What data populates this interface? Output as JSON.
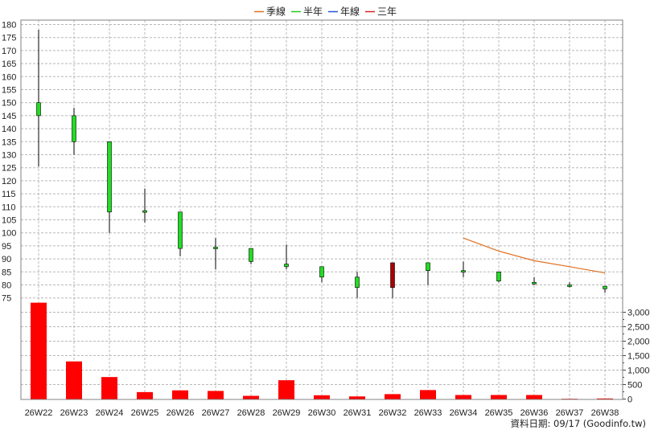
{
  "chart_data": {
    "type": "candlestick",
    "legend": [
      {
        "name": "季線",
        "color": "#e07020"
      },
      {
        "name": "半年",
        "color": "#22cc22"
      },
      {
        "name": "年線",
        "color": "#2255dd"
      },
      {
        "name": "三年",
        "color": "#dd2222"
      }
    ],
    "categories": [
      "26W22",
      "26W23",
      "26W24",
      "26W25",
      "26W26",
      "26W27",
      "26W28",
      "26W29",
      "26W30",
      "26W31",
      "26W32",
      "26W33",
      "26W34",
      "26W35",
      "26W36",
      "26W37",
      "26W38"
    ],
    "price_axis": {
      "min": 75,
      "max": 180,
      "step": 5
    },
    "volume_axis": {
      "min": 0,
      "max": 3000,
      "step": 500,
      "labels": [
        "0",
        "500",
        "1,000",
        "1,500",
        "2,000",
        "2,500",
        "3,000"
      ]
    },
    "candles": [
      {
        "open": 145,
        "close": 150,
        "high": 178,
        "low": 125.5
      },
      {
        "open": 135,
        "close": 145,
        "high": 148,
        "low": 130
      },
      {
        "open": 108,
        "close": 135,
        "high": 135,
        "low": 100
      },
      {
        "open": 108,
        "close": 108.5,
        "high": 117,
        "low": 104
      },
      {
        "open": 94,
        "close": 108,
        "high": 108,
        "low": 91
      },
      {
        "open": 94,
        "close": 94.5,
        "high": 98,
        "low": 86
      },
      {
        "open": 89,
        "close": 94,
        "high": 94,
        "low": 88
      },
      {
        "open": 87,
        "close": 88,
        "high": 95.5,
        "low": 86
      },
      {
        "open": 83,
        "close": 87,
        "high": 87,
        "low": 81
      },
      {
        "open": 79,
        "close": 83,
        "high": 85,
        "low": 75
      },
      {
        "open": 88.5,
        "close": 79,
        "high": 88.5,
        "low": 75
      },
      {
        "open": 85.5,
        "close": 88.5,
        "high": 88.5,
        "low": 80
      },
      {
        "open": 85,
        "close": 85.5,
        "high": 89,
        "low": 83
      },
      {
        "open": 81.5,
        "close": 85,
        "high": 85,
        "low": 81
      },
      {
        "open": 80.5,
        "close": 81,
        "high": 83,
        "low": 80
      },
      {
        "open": 79.5,
        "close": 80,
        "high": 81,
        "low": 79
      },
      {
        "open": 78.5,
        "close": 79.5,
        "high": 79.5,
        "low": 77
      }
    ],
    "volume": [
      3330,
      1300,
      760,
      240,
      300,
      280,
      110,
      650,
      130,
      90,
      170,
      310,
      140,
      140,
      140,
      10,
      20
    ],
    "quarterly_line": {
      "start_index": 12,
      "values": [
        98,
        93,
        89.3,
        87,
        84.6
      ]
    },
    "footer": "資料日期: 09/17  (Goodinfo.tw)"
  }
}
